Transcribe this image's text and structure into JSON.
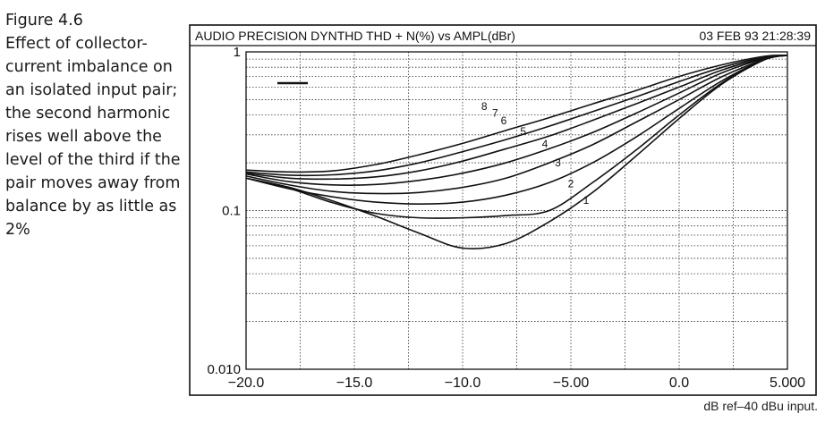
{
  "caption": {
    "figure": "Figure 4.6",
    "text": "Effect of collector-current imbalance on an isolated input pair; the second harmonic rises well above the level of the third if the pair moves away from balance by as little as 2%"
  },
  "footnote": "dB ref–40 dBu input.",
  "colors": {
    "ink": "#111111",
    "grid": "#333333",
    "background": "#ffffff"
  },
  "chart_data": {
    "type": "line",
    "header_left": "AUDIO PRECISION DYNTHD THD + N(%) vs AMPL(dBr)",
    "header_right": "03 FEB 93 21:28:39",
    "xlabel": "",
    "ylabel": "",
    "xlim": [
      -20,
      5
    ],
    "ylim": [
      0.01,
      1
    ],
    "yscale": "log",
    "grid": true,
    "x_ticks": [
      -20,
      -15,
      -10,
      -5,
      0,
      5
    ],
    "x_tick_labels": [
      "−20.0",
      "−15.0",
      "−10.0",
      "−5.00",
      "0.0",
      "5.000"
    ],
    "y_tick_labels": [
      {
        "value": 1,
        "label": "1"
      },
      {
        "value": 0.1,
        "label": "0.1"
      },
      {
        "value": 0.01,
        "label": "0.010"
      }
    ],
    "series": [
      {
        "name": "1",
        "label_at": [
          -4.3,
          0.11
        ],
        "x": [
          -20,
          -18,
          -16,
          -14,
          -12,
          -10,
          -8,
          -6,
          -4,
          -2,
          0,
          2,
          4,
          5
        ],
        "y": [
          0.16,
          0.14,
          0.115,
          0.092,
          0.072,
          0.058,
          0.062,
          0.085,
          0.13,
          0.22,
          0.38,
          0.63,
          0.9,
          0.95
        ]
      },
      {
        "name": "2",
        "label_at": [
          -5.0,
          0.14
        ],
        "x": [
          -20,
          -18,
          -16,
          -14,
          -12,
          -10,
          -8,
          -6,
          -4,
          -2,
          0,
          2,
          4,
          5
        ],
        "y": [
          0.16,
          0.138,
          0.112,
          0.096,
          0.09,
          0.09,
          0.093,
          0.1,
          0.15,
          0.24,
          0.4,
          0.64,
          0.9,
          0.95
        ]
      },
      {
        "name": "3",
        "label_at": [
          -5.6,
          0.19
        ],
        "x": [
          -20,
          -18,
          -16,
          -14,
          -12,
          -10,
          -8,
          -6,
          -4,
          -2,
          0,
          2,
          4,
          5
        ],
        "y": [
          0.16,
          0.137,
          0.122,
          0.113,
          0.11,
          0.113,
          0.125,
          0.15,
          0.2,
          0.29,
          0.44,
          0.66,
          0.9,
          0.95
        ]
      },
      {
        "name": "4",
        "label_at": [
          -6.2,
          0.25
        ],
        "x": [
          -20,
          -18,
          -16,
          -14,
          -12,
          -10,
          -8,
          -6,
          -4,
          -2,
          0,
          2,
          4,
          5
        ],
        "y": [
          0.165,
          0.145,
          0.132,
          0.128,
          0.13,
          0.14,
          0.16,
          0.2,
          0.26,
          0.36,
          0.5,
          0.7,
          0.9,
          0.95
        ]
      },
      {
        "name": "5",
        "label_at": [
          -7.2,
          0.3
        ],
        "x": [
          -20,
          -18,
          -16,
          -14,
          -12,
          -10,
          -8,
          -6,
          -4,
          -2,
          0,
          2,
          4,
          5
        ],
        "y": [
          0.17,
          0.152,
          0.145,
          0.146,
          0.155,
          0.172,
          0.2,
          0.245,
          0.31,
          0.41,
          0.55,
          0.74,
          0.91,
          0.95
        ]
      },
      {
        "name": "6",
        "label_at": [
          -8.1,
          0.35
        ],
        "x": [
          -20,
          -18,
          -16,
          -14,
          -12,
          -10,
          -8,
          -6,
          -4,
          -2,
          0,
          2,
          4,
          5
        ],
        "y": [
          0.172,
          0.16,
          0.158,
          0.163,
          0.178,
          0.205,
          0.245,
          0.295,
          0.37,
          0.47,
          0.6,
          0.77,
          0.92,
          0.95
        ]
      },
      {
        "name": "7",
        "label_at": [
          -8.5,
          0.39
        ],
        "x": [
          -20,
          -18,
          -16,
          -14,
          -12,
          -10,
          -8,
          -6,
          -4,
          -2,
          0,
          2,
          4,
          5
        ],
        "y": [
          0.175,
          0.167,
          0.168,
          0.178,
          0.2,
          0.235,
          0.28,
          0.34,
          0.42,
          0.52,
          0.65,
          0.8,
          0.93,
          0.95
        ]
      },
      {
        "name": "8",
        "label_at": [
          -9.0,
          0.43
        ],
        "x": [
          -20,
          -18,
          -16,
          -14,
          -12,
          -10,
          -8,
          -6,
          -4,
          -2,
          0,
          2,
          4,
          5
        ],
        "y": [
          0.18,
          0.175,
          0.178,
          0.195,
          0.225,
          0.265,
          0.32,
          0.385,
          0.47,
          0.57,
          0.7,
          0.83,
          0.94,
          0.95
        ]
      }
    ]
  }
}
